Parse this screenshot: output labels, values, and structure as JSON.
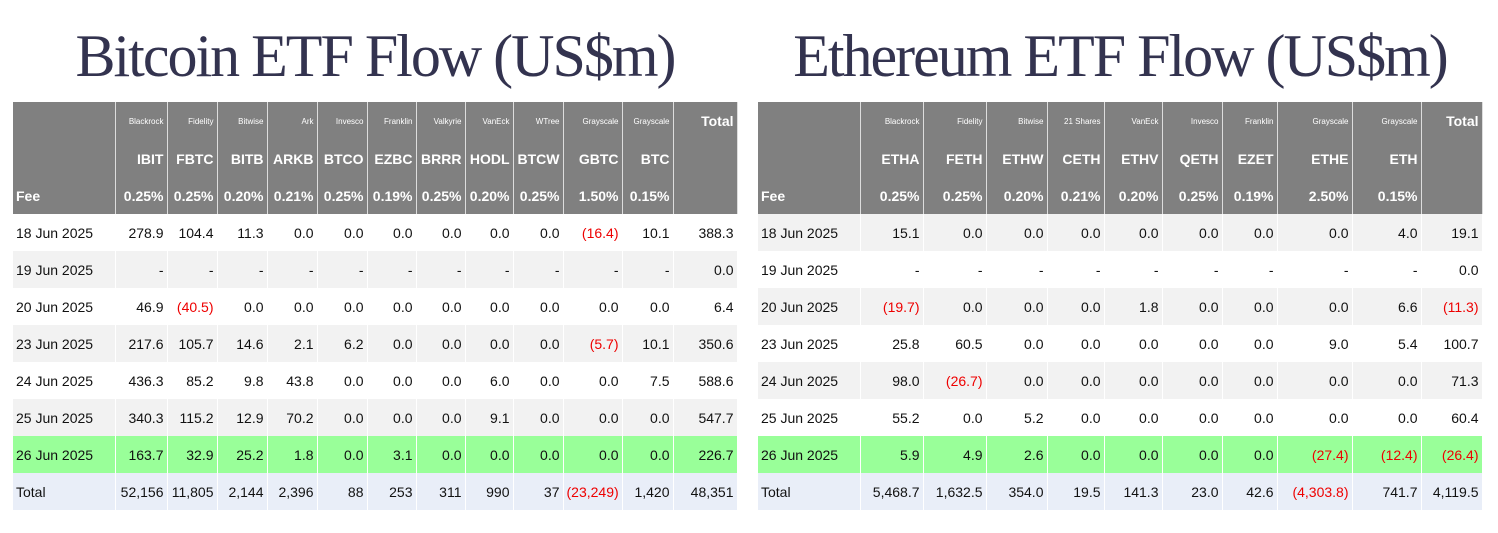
{
  "bitcoin": {
    "title": "Bitcoin ETF Flow (US$m)",
    "issuers": [
      "Blackrock",
      "Fidelity",
      "Bitwise",
      "Ark",
      "Invesco",
      "Franklin",
      "Valkyrie",
      "VanEck",
      "WTree",
      "Grayscale",
      "Grayscale"
    ],
    "total_header": "Total",
    "tickers": [
      "IBIT",
      "FBTC",
      "BITB",
      "ARKB",
      "BTCO",
      "EZBC",
      "BRRR",
      "HODL",
      "BTCW",
      "GBTC",
      "BTC"
    ],
    "fee_label": "Fee",
    "fees": [
      "0.25%",
      "0.25%",
      "0.20%",
      "0.21%",
      "0.25%",
      "0.19%",
      "0.25%",
      "0.20%",
      "0.25%",
      "1.50%",
      "0.15%"
    ],
    "rows": [
      [
        "18 Jun 2025",
        "278.9",
        "104.4",
        "11.3",
        "0.0",
        "0.0",
        "0.0",
        "0.0",
        "0.0",
        "0.0",
        "(16.4)",
        "10.1",
        "388.3"
      ],
      [
        "19 Jun 2025",
        "-",
        "-",
        "-",
        "-",
        "-",
        "-",
        "-",
        "-",
        "-",
        "-",
        "-",
        "0.0"
      ],
      [
        "20 Jun 2025",
        "46.9",
        "(40.5)",
        "0.0",
        "0.0",
        "0.0",
        "0.0",
        "0.0",
        "0.0",
        "0.0",
        "0.0",
        "0.0",
        "6.4"
      ],
      [
        "23 Jun 2025",
        "217.6",
        "105.7",
        "14.6",
        "2.1",
        "6.2",
        "0.0",
        "0.0",
        "0.0",
        "0.0",
        "(5.7)",
        "10.1",
        "350.6"
      ],
      [
        "24 Jun 2025",
        "436.3",
        "85.2",
        "9.8",
        "43.8",
        "0.0",
        "0.0",
        "0.0",
        "6.0",
        "0.0",
        "0.0",
        "7.5",
        "588.6"
      ],
      [
        "25 Jun 2025",
        "340.3",
        "115.2",
        "12.9",
        "70.2",
        "0.0",
        "0.0",
        "0.0",
        "9.1",
        "0.0",
        "0.0",
        "0.0",
        "547.7"
      ],
      [
        "26 Jun 2025",
        "163.7",
        "32.9",
        "25.2",
        "1.8",
        "0.0",
        "3.1",
        "0.0",
        "0.0",
        "0.0",
        "0.0",
        "0.0",
        "226.7"
      ]
    ],
    "total_row": [
      "Total",
      "52,156",
      "11,805",
      "2,144",
      "2,396",
      "88",
      "253",
      "311",
      "990",
      "37",
      "(23,249)",
      "1,420",
      "48,351"
    ]
  },
  "ethereum": {
    "title": "Ethereum ETF Flow (US$m)",
    "issuers": [
      "Blackrock",
      "Fidelity",
      "Bitwise",
      "21 Shares",
      "VanEck",
      "Invesco",
      "Franklin",
      "Grayscale",
      "Grayscale"
    ],
    "total_header": "Total",
    "tickers": [
      "ETHA",
      "FETH",
      "ETHW",
      "CETH",
      "ETHV",
      "QETH",
      "EZET",
      "ETHE",
      "ETH"
    ],
    "fee_label": "Fee",
    "fees": [
      "0.25%",
      "0.25%",
      "0.20%",
      "0.21%",
      "0.20%",
      "0.25%",
      "0.19%",
      "2.50%",
      "0.15%"
    ],
    "rows": [
      [
        "18 Jun 2025",
        "15.1",
        "0.0",
        "0.0",
        "0.0",
        "0.0",
        "0.0",
        "0.0",
        "0.0",
        "4.0",
        "19.1"
      ],
      [
        "19 Jun 2025",
        "-",
        "-",
        "-",
        "-",
        "-",
        "-",
        "-",
        "-",
        "-",
        "0.0"
      ],
      [
        "20 Jun 2025",
        "(19.7)",
        "0.0",
        "0.0",
        "0.0",
        "1.8",
        "0.0",
        "0.0",
        "0.0",
        "6.6",
        "(11.3)"
      ],
      [
        "23 Jun 2025",
        "25.8",
        "60.5",
        "0.0",
        "0.0",
        "0.0",
        "0.0",
        "0.0",
        "9.0",
        "5.4",
        "100.7"
      ],
      [
        "24 Jun 2025",
        "98.0",
        "(26.7)",
        "0.0",
        "0.0",
        "0.0",
        "0.0",
        "0.0",
        "0.0",
        "0.0",
        "71.3"
      ],
      [
        "25 Jun 2025",
        "55.2",
        "0.0",
        "5.2",
        "0.0",
        "0.0",
        "0.0",
        "0.0",
        "0.0",
        "0.0",
        "60.4"
      ],
      [
        "26 Jun 2025",
        "5.9",
        "4.9",
        "2.6",
        "0.0",
        "0.0",
        "0.0",
        "0.0",
        "(27.4)",
        "(12.4)",
        "(26.4)"
      ]
    ],
    "total_row": [
      "Total",
      "5,468.7",
      "1,632.5",
      "354.0",
      "19.5",
      "141.3",
      "23.0",
      "42.6",
      "(4,303.8)",
      "741.7",
      "4,119.5"
    ]
  }
}
